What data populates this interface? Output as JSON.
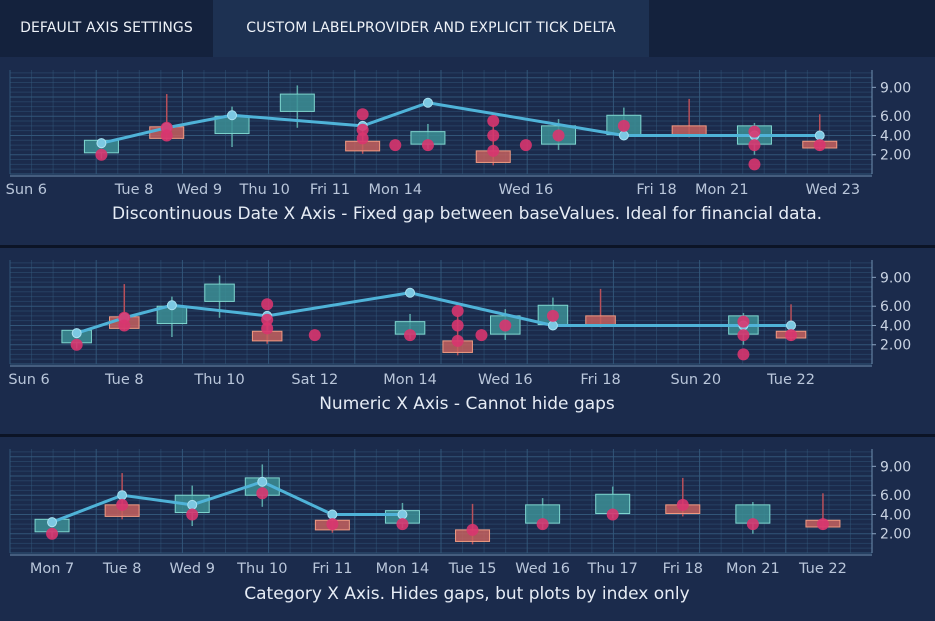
{
  "tabs": [
    {
      "label": "DEFAULT AXIS SETTINGS",
      "active": false
    },
    {
      "label": "CUSTOM LABELPROVIDER AND EXPLICIT TICK DELTA",
      "active": true
    }
  ],
  "colors": {
    "background": "#1b2b4c",
    "grid": "#3d6a8e",
    "candle_up_fill": "#3c8f95",
    "candle_up_stroke": "#7fd6cf",
    "candle_down_fill": "#c4605e",
    "candle_down_stroke": "#f09a82",
    "line": "#4fb3d8",
    "scatter": "#d8356f"
  },
  "chart_data": [
    {
      "type": "candlestick+line+scatter",
      "title": "Discontinuous Date X Axis - Fixed gap between baseValues.  Ideal for financial data.",
      "x_kind": "discontinuous-date",
      "xlim": [
        -0.4,
        12.8
      ],
      "ylim": [
        0,
        10.8
      ],
      "y_ticks": [
        "9.00",
        "6.00",
        "4.00",
        "2.00"
      ],
      "y_tick_values": [
        9,
        6,
        4,
        2
      ],
      "x_ticks": [
        {
          "x": -0.15,
          "label": "Sun 6"
        },
        {
          "x": 1.5,
          "label": "Tue 8"
        },
        {
          "x": 2.5,
          "label": "Wed 9"
        },
        {
          "x": 3.5,
          "label": "Thu 10"
        },
        {
          "x": 4.5,
          "label": "Fri 11"
        },
        {
          "x": 5.5,
          "label": "Mon 14"
        },
        {
          "x": 7.5,
          "label": "Wed 16"
        },
        {
          "x": 9.5,
          "label": "Fri 18"
        },
        {
          "x": 10.5,
          "label": "Mon 21"
        },
        {
          "x": 12.2,
          "label": "Wed 23"
        }
      ],
      "candles": [
        {
          "x": 1,
          "open": 2.2,
          "close": 3.5,
          "high": 3.7,
          "low": 1.6
        },
        {
          "x": 2,
          "open": 4.9,
          "close": 3.7,
          "high": 8.3,
          "low": 3.5
        },
        {
          "x": 3,
          "open": 4.2,
          "close": 6.0,
          "high": 7.0,
          "low": 2.8
        },
        {
          "x": 4,
          "open": 6.5,
          "close": 8.3,
          "high": 9.2,
          "low": 4.8
        },
        {
          "x": 5,
          "open": 3.4,
          "close": 2.4,
          "high": 4.5,
          "low": 2.1
        },
        {
          "x": 6,
          "open": 3.1,
          "close": 4.4,
          "high": 5.2,
          "low": 2.6
        },
        {
          "x": 7,
          "open": 2.4,
          "close": 1.2,
          "high": 5.1,
          "low": 0.9
        },
        {
          "x": 8,
          "open": 3.1,
          "close": 5.0,
          "high": 5.7,
          "low": 2.5
        },
        {
          "x": 9,
          "open": 4.1,
          "close": 6.1,
          "high": 6.9,
          "low": 3.6
        },
        {
          "x": 10,
          "open": 5.0,
          "close": 4.1,
          "high": 7.8,
          "low": 3.8
        },
        {
          "x": 11,
          "open": 3.1,
          "close": 5.0,
          "high": 5.3,
          "low": 2.0
        },
        {
          "x": 12,
          "open": 3.4,
          "close": 2.7,
          "high": 6.2,
          "low": 2.4
        }
      ],
      "line": [
        {
          "x": 1,
          "y": 3.2
        },
        {
          "x": 2,
          "y": 4.8
        },
        {
          "x": 3,
          "y": 6.1
        },
        {
          "x": 5,
          "y": 5.0
        },
        {
          "x": 6,
          "y": 7.4
        },
        {
          "x": 9,
          "y": 4.0
        },
        {
          "x": 11,
          "y": 4.0
        },
        {
          "x": 12,
          "y": 4.0
        }
      ],
      "scatter": [
        {
          "x": 1,
          "y": 2.0
        },
        {
          "x": 2,
          "y": 4.8
        },
        {
          "x": 2,
          "y": 4.0
        },
        {
          "x": 5,
          "y": 6.2
        },
        {
          "x": 5,
          "y": 4.6
        },
        {
          "x": 5,
          "y": 3.7
        },
        {
          "x": 5.5,
          "y": 3.0
        },
        {
          "x": 6,
          "y": 3.0
        },
        {
          "x": 7,
          "y": 5.5
        },
        {
          "x": 7,
          "y": 4.0
        },
        {
          "x": 7,
          "y": 2.4
        },
        {
          "x": 7.5,
          "y": 3.0
        },
        {
          "x": 8,
          "y": 4.0
        },
        {
          "x": 9,
          "y": 5.0
        },
        {
          "x": 11,
          "y": 4.4
        },
        {
          "x": 11,
          "y": 3.0
        },
        {
          "x": 11,
          "y": 1.0
        },
        {
          "x": 12,
          "y": 3.0
        }
      ]
    },
    {
      "type": "candlestick+line+scatter",
      "title": "Numeric X Axis - Cannot hide gaps",
      "x_kind": "numeric-date",
      "xlim": [
        5.6,
        23.7
      ],
      "ylim": [
        0,
        10.8
      ],
      "y_ticks": [
        "9.00",
        "6.00",
        "4.00",
        "2.00"
      ],
      "y_tick_values": [
        9,
        6,
        4,
        2
      ],
      "x_ticks": [
        {
          "x": 6,
          "label": "Sun 6"
        },
        {
          "x": 8,
          "label": "Tue 8"
        },
        {
          "x": 10,
          "label": "Thu 10"
        },
        {
          "x": 12,
          "label": "Sat 12"
        },
        {
          "x": 14,
          "label": "Mon 14"
        },
        {
          "x": 16,
          "label": "Wed 16"
        },
        {
          "x": 18,
          "label": "Fri 18"
        },
        {
          "x": 20,
          "label": "Sun 20"
        },
        {
          "x": 22,
          "label": "Tue 22"
        }
      ],
      "candles": [
        {
          "x": 7,
          "open": 2.2,
          "close": 3.5,
          "high": 3.7,
          "low": 1.6
        },
        {
          "x": 8,
          "open": 4.9,
          "close": 3.7,
          "high": 8.3,
          "low": 3.5
        },
        {
          "x": 9,
          "open": 4.2,
          "close": 6.0,
          "high": 7.0,
          "low": 2.8
        },
        {
          "x": 10,
          "open": 6.5,
          "close": 8.3,
          "high": 9.2,
          "low": 4.8
        },
        {
          "x": 11,
          "open": 3.4,
          "close": 2.4,
          "high": 4.5,
          "low": 2.1
        },
        {
          "x": 14,
          "open": 3.1,
          "close": 4.4,
          "high": 5.2,
          "low": 2.6
        },
        {
          "x": 15,
          "open": 2.4,
          "close": 1.2,
          "high": 5.1,
          "low": 0.9
        },
        {
          "x": 16,
          "open": 3.1,
          "close": 5.0,
          "high": 5.7,
          "low": 2.5
        },
        {
          "x": 17,
          "open": 4.1,
          "close": 6.1,
          "high": 6.9,
          "low": 3.6
        },
        {
          "x": 18,
          "open": 5.0,
          "close": 4.1,
          "high": 7.8,
          "low": 3.8
        },
        {
          "x": 21,
          "open": 3.1,
          "close": 5.0,
          "high": 5.3,
          "low": 2.0
        },
        {
          "x": 22,
          "open": 3.4,
          "close": 2.7,
          "high": 6.2,
          "low": 2.4
        }
      ],
      "line": [
        {
          "x": 7,
          "y": 3.2
        },
        {
          "x": 8,
          "y": 4.8
        },
        {
          "x": 9,
          "y": 6.1
        },
        {
          "x": 11,
          "y": 5.0
        },
        {
          "x": 14,
          "y": 7.4
        },
        {
          "x": 17,
          "y": 4.0
        },
        {
          "x": 21,
          "y": 4.0
        },
        {
          "x": 22,
          "y": 4.0
        }
      ],
      "scatter": [
        {
          "x": 7,
          "y": 2.0
        },
        {
          "x": 8,
          "y": 4.8
        },
        {
          "x": 8,
          "y": 4.0
        },
        {
          "x": 11,
          "y": 6.2
        },
        {
          "x": 11,
          "y": 4.6
        },
        {
          "x": 11,
          "y": 3.7
        },
        {
          "x": 12,
          "y": 3.0
        },
        {
          "x": 14,
          "y": 3.0
        },
        {
          "x": 15,
          "y": 5.5
        },
        {
          "x": 15,
          "y": 4.0
        },
        {
          "x": 15,
          "y": 2.4
        },
        {
          "x": 15.5,
          "y": 3.0
        },
        {
          "x": 16,
          "y": 4.0
        },
        {
          "x": 17,
          "y": 5.0
        },
        {
          "x": 21,
          "y": 4.4
        },
        {
          "x": 21,
          "y": 3.0
        },
        {
          "x": 21,
          "y": 1.0
        },
        {
          "x": 22,
          "y": 3.0
        }
      ]
    },
    {
      "type": "candlestick+line+scatter",
      "title": "Category X Axis.  Hides gaps, but plots by index only",
      "x_kind": "category",
      "xlim": [
        -0.6,
        11.7
      ],
      "ylim": [
        0,
        10.8
      ],
      "y_ticks": [
        "9.00",
        "6.00",
        "4.00",
        "2.00"
      ],
      "y_tick_values": [
        9,
        6,
        4,
        2
      ],
      "x_ticks": [
        {
          "x": 0,
          "label": "Mon 7"
        },
        {
          "x": 1,
          "label": "Tue 8"
        },
        {
          "x": 2,
          "label": "Wed 9"
        },
        {
          "x": 3,
          "label": "Thu 10"
        },
        {
          "x": 4,
          "label": "Fri 11"
        },
        {
          "x": 5,
          "label": "Mon 14"
        },
        {
          "x": 6,
          "label": "Tue 15"
        },
        {
          "x": 7,
          "label": "Wed 16"
        },
        {
          "x": 8,
          "label": "Thu 17"
        },
        {
          "x": 9,
          "label": "Fri 18"
        },
        {
          "x": 10,
          "label": "Mon 21"
        },
        {
          "x": 11,
          "label": "Tue 22"
        }
      ],
      "candles": [
        {
          "x": 0,
          "open": 2.2,
          "close": 3.5,
          "high": 3.7,
          "low": 1.6
        },
        {
          "x": 1,
          "open": 5.0,
          "close": 3.8,
          "high": 8.3,
          "low": 3.5
        },
        {
          "x": 2,
          "open": 4.2,
          "close": 6.0,
          "high": 7.0,
          "low": 2.8
        },
        {
          "x": 3,
          "open": 6.0,
          "close": 7.8,
          "high": 9.2,
          "low": 4.8
        },
        {
          "x": 4,
          "open": 3.4,
          "close": 2.4,
          "high": 4.5,
          "low": 2.1
        },
        {
          "x": 5,
          "open": 3.1,
          "close": 4.4,
          "high": 5.2,
          "low": 2.6
        },
        {
          "x": 6,
          "open": 2.4,
          "close": 1.2,
          "high": 5.1,
          "low": 0.9
        },
        {
          "x": 7,
          "open": 3.1,
          "close": 5.0,
          "high": 5.7,
          "low": 2.5
        },
        {
          "x": 8,
          "open": 4.1,
          "close": 6.1,
          "high": 6.9,
          "low": 3.6
        },
        {
          "x": 9,
          "open": 5.0,
          "close": 4.1,
          "high": 7.8,
          "low": 3.8
        },
        {
          "x": 10,
          "open": 3.1,
          "close": 5.0,
          "high": 5.3,
          "low": 2.0
        },
        {
          "x": 11,
          "open": 3.4,
          "close": 2.7,
          "high": 6.2,
          "low": 2.4
        }
      ],
      "line": [
        {
          "x": 0,
          "y": 3.2
        },
        {
          "x": 1,
          "y": 6.0
        },
        {
          "x": 2,
          "y": 5.0
        },
        {
          "x": 3,
          "y": 7.4
        },
        {
          "x": 4,
          "y": 4.0
        },
        {
          "x": 5,
          "y": 4.0
        }
      ],
      "scatter": [
        {
          "x": 0,
          "y": 2.0
        },
        {
          "x": 1,
          "y": 5.0
        },
        {
          "x": 2,
          "y": 4.0
        },
        {
          "x": 3,
          "y": 6.2
        },
        {
          "x": 4,
          "y": 3.0
        },
        {
          "x": 5,
          "y": 3.0
        },
        {
          "x": 6,
          "y": 2.4
        },
        {
          "x": 7,
          "y": 3.0
        },
        {
          "x": 8,
          "y": 4.0
        },
        {
          "x": 9,
          "y": 5.0
        },
        {
          "x": 10,
          "y": 3.0
        },
        {
          "x": 11,
          "y": 3.0
        }
      ]
    }
  ]
}
